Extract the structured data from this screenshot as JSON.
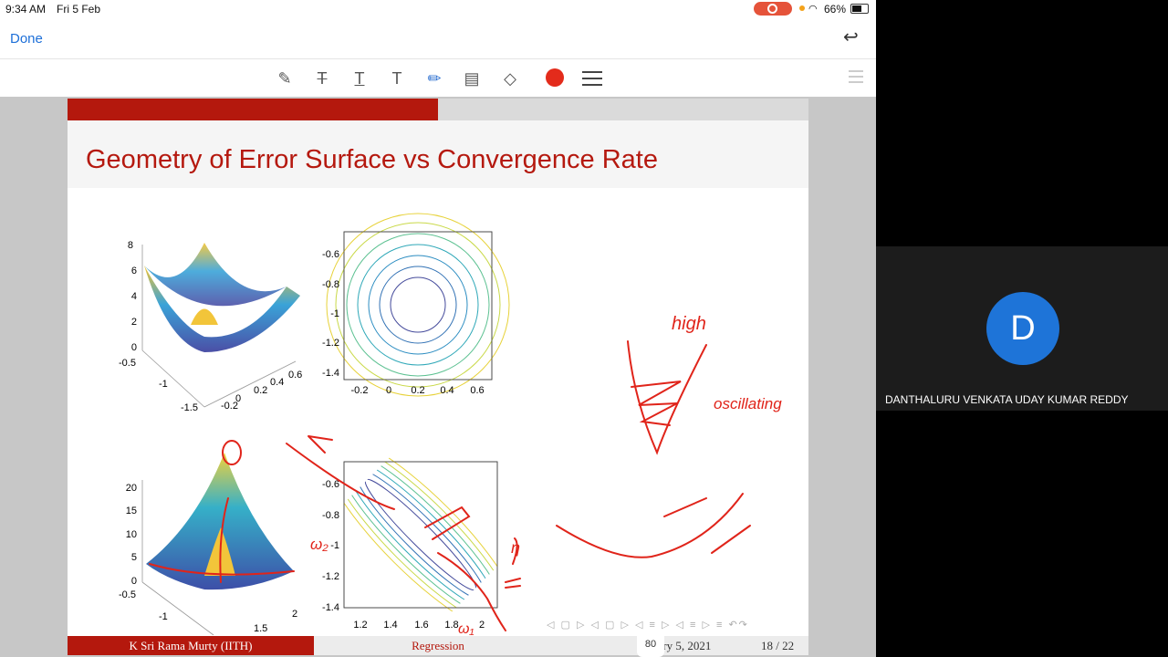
{
  "status_bar": {
    "time": "9:34 AM",
    "date": "Fri 5 Feb",
    "battery": "66%"
  },
  "nav": {
    "done_label": "Done"
  },
  "toolbar": {
    "tools": [
      "pencil-tool",
      "text-strike-tool",
      "text-underline-tool",
      "text-tool",
      "pen-tool",
      "comment-tool",
      "eraser-tool"
    ],
    "color": "#e32b1b"
  },
  "slide": {
    "title": "Geometry of Error Surface vs Convergence Rate",
    "progress": 0.5,
    "footer": {
      "author": "K Sri Rama Murty (IITH)",
      "topic": "Regression",
      "date": "uary 5, 2021",
      "page": "18 / 22"
    },
    "plot1_3d": {
      "z_ticks": [
        "8",
        "6",
        "4",
        "2",
        "0"
      ],
      "x_ticks": [
        "-0.5",
        "-1",
        "-1.5"
      ],
      "y_ticks": [
        "-0.2",
        "0",
        "0.2",
        "0.4",
        "0.6"
      ]
    },
    "plot1_contour": {
      "y_ticks": [
        "-0.6",
        "-0.8",
        "-1",
        "-1.2",
        "-1.4"
      ],
      "x_ticks": [
        "-0.2",
        "0",
        "0.2",
        "0.4",
        "0.6"
      ]
    },
    "plot2_3d": {
      "z_ticks": [
        "20",
        "15",
        "10",
        "5",
        "0"
      ],
      "x_ticks": [
        "-0.5",
        "-1"
      ],
      "y_ticks": [
        "1.5",
        "2"
      ]
    },
    "plot2_contour": {
      "y_ticks": [
        "-0.6",
        "-0.8",
        "-1",
        "-1.2",
        "-1.4"
      ],
      "x_ticks": [
        "1.2",
        "1.4",
        "1.6",
        "1.8",
        "2"
      ]
    },
    "annotations": {
      "high": "high",
      "oscillating": "oscillating",
      "w2": "ω₂",
      "w1": "ω₁",
      "eta": "η"
    }
  },
  "zoom_label": "80",
  "participant": {
    "initial": "D",
    "name": "DANTHALURU VENKATA UDAY KUMAR REDDY"
  },
  "colors": {
    "slide_red": "#b4180d",
    "avatar_blue": "#1e74d8",
    "ink_red": "#e0241a"
  }
}
